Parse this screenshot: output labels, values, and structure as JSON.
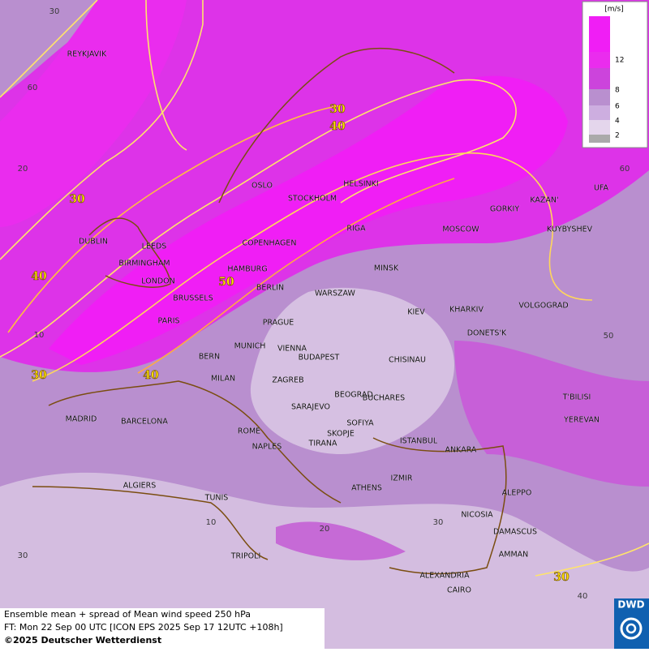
{
  "legend": {
    "unit": "[m/s]",
    "labels": [
      "12",
      "8",
      "6",
      "4",
      "2"
    ]
  },
  "cities": [
    "REYKJAVIK",
    "OSLO",
    "STOCKHOLM",
    "HELSINKI",
    "DUBLIN",
    "LEEDS",
    "BIRMINGHAM",
    "LONDON",
    "COPENHAGEN",
    "HAMBURG",
    "RIGA",
    "MOSCOW",
    "GORKIY",
    "KAZAN'",
    "UFA",
    "KUYBYSHEV",
    "MINSK",
    "BERLIN",
    "WARSZAW",
    "BRUSSELS",
    "PARIS",
    "PRAGUE",
    "KIEV",
    "KHARKIV",
    "VOLGOGRAD",
    "DONETS'K",
    "MUNICH",
    "VIENNA",
    "BUDAPEST",
    "CHISINAU",
    "BERN",
    "MILAN",
    "ZAGREB",
    "BEOGRAD",
    "BUCHARES",
    "T'BILISI",
    "YEREVAN",
    "MADRID",
    "BARCELONA",
    "SARAJEVO",
    "SOFIYA",
    "SKOPJE",
    "TIRANA",
    "ROME",
    "NAPLES",
    "ISTANBUL",
    "ANKARA",
    "ALGIERS",
    "ATHENS",
    "IZMIR",
    "ALEPPO",
    "TUNIS",
    "NICOSIA",
    "DAMASCUS",
    "TRIPOLI",
    "AMMAN",
    "ALEXANDRIA",
    "CAIRO"
  ],
  "contour_labels": [
    "30",
    "40",
    "30",
    "40",
    "50",
    "30",
    "40",
    "30"
  ],
  "grid_labels": [
    "30",
    "60",
    "20",
    "10",
    "30",
    "10",
    "20",
    "30",
    "40",
    "50",
    "60"
  ],
  "caption": {
    "line1": "Ensemble mean + spread of Mean wind speed 250 hPa",
    "line2": "FT: Mon 22 Sep 00 UTC [ICON EPS 2025 Sep 17 12UTC +108h]",
    "line3": "©2025 Deutscher Wetterdienst"
  },
  "logo": "DWD"
}
